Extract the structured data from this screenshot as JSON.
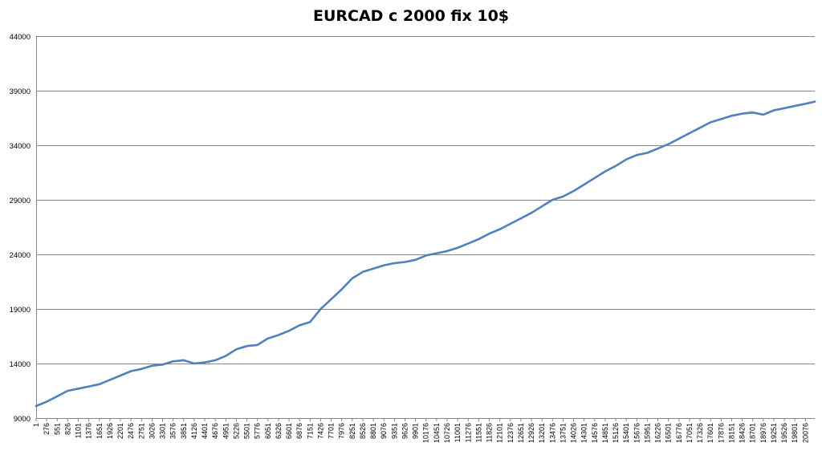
{
  "chart_data": {
    "type": "line",
    "title": "EURCAD c 2000 fix 10$",
    "xlabel": "",
    "ylabel": "",
    "ylim": [
      9000,
      44000
    ],
    "y_ticks": [
      9000,
      14000,
      19000,
      24000,
      29000,
      34000,
      39000,
      44000
    ],
    "y_tick_labels": [
      "9000",
      "14000",
      "19000",
      "24000",
      "29000",
      "34000",
      "39000",
      "44000"
    ],
    "x_tick_labels": [
      "1",
      "276",
      "551",
      "826",
      "1101",
      "1376",
      "1651",
      "1926",
      "2201",
      "2476",
      "2751",
      "3026",
      "3301",
      "3576",
      "3851",
      "4126",
      "4401",
      "4676",
      "4951",
      "5226",
      "5501",
      "5776",
      "6051",
      "6326",
      "6601",
      "6876",
      "7151",
      "7426",
      "7701",
      "7976",
      "8251",
      "8526",
      "8801",
      "9076",
      "9351",
      "9626",
      "9901",
      "10176",
      "10451",
      "10726",
      "11001",
      "11276",
      "11551",
      "11826",
      "12101",
      "12376",
      "12651",
      "12926",
      "13201",
      "13476",
      "13751",
      "14026",
      "14301",
      "14576",
      "14851",
      "15126",
      "15401",
      "15676",
      "15951",
      "16226",
      "16501",
      "16776",
      "17051",
      "17326",
      "17601",
      "17876",
      "18151",
      "18426",
      "18701",
      "18976",
      "19251",
      "19526",
      "19801",
      "20076"
    ],
    "xlim": [
      1,
      20320
    ],
    "grid": "horizontal",
    "legend": "none",
    "line_color": "#4F81BD",
    "series": [
      {
        "x": [
          1,
          276,
          551,
          826,
          1101,
          1376,
          1651,
          1926,
          2201,
          2476,
          2751,
          3026,
          3301,
          3576,
          3851,
          4126,
          4401,
          4676,
          4951,
          5226,
          5501,
          5776,
          6051,
          6326,
          6601,
          6876,
          7151,
          7426,
          7701,
          7976,
          8251,
          8526,
          8801,
          9076,
          9351,
          9626,
          9901,
          10176,
          10451,
          10726,
          11001,
          11276,
          11551,
          11826,
          12101,
          12376,
          12651,
          12926,
          13201,
          13476,
          13751,
          14026,
          14301,
          14576,
          14851,
          15126,
          15401,
          15676,
          15951,
          16226,
          16501,
          16776,
          17051,
          17326,
          17601,
          17876,
          18151,
          18426,
          18701,
          18976,
          19251,
          19526,
          19801,
          20076,
          20320
        ],
        "values": [
          10100,
          10500,
          11000,
          11500,
          11700,
          11900,
          12100,
          12500,
          12900,
          13300,
          13500,
          13800,
          13900,
          14200,
          14300,
          14000,
          14100,
          14300,
          14700,
          15300,
          15600,
          15700,
          16300,
          16600,
          17000,
          17500,
          17800,
          19000,
          19900,
          20800,
          21800,
          22400,
          22700,
          23000,
          23200,
          23300,
          23500,
          23900,
          24100,
          24300,
          24600,
          25000,
          25400,
          25900,
          26300,
          26800,
          27300,
          27800,
          28400,
          29000,
          29300,
          29800,
          30400,
          31000,
          31600,
          32100,
          32700,
          33100,
          33300,
          33700,
          34100,
          34600,
          35100,
          35600,
          36100,
          36400,
          36700,
          36900,
          37000,
          36800,
          37200,
          37400,
          37600,
          37800,
          38000
        ]
      }
    ]
  }
}
